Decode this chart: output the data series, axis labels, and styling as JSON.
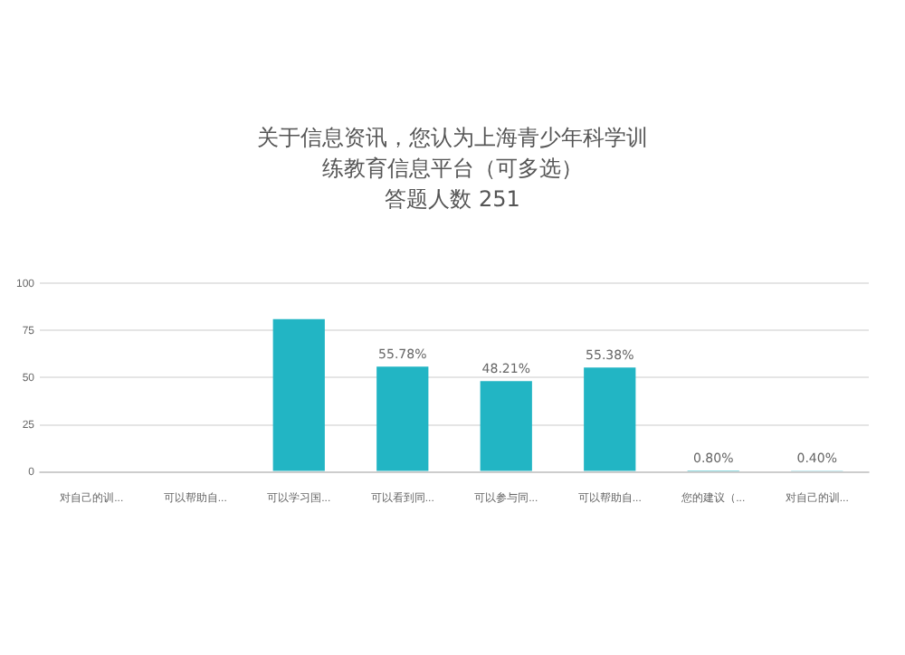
{
  "chart_data": {
    "type": "bar",
    "title": "关于信息资讯，您认为上海青少年科学训练教育信息平台（可多选）",
    "subtitle": "答题人数 251",
    "categories": [
      "对自己的训...",
      "可以帮助自...",
      "可以学习国...",
      "可以看到同...",
      "可以参与同...",
      "可以帮助自...",
      "您的建议（...",
      "对自己的训..."
    ],
    "values": [
      null,
      null,
      81,
      55.78,
      48.21,
      55.38,
      0.8,
      0.4
    ],
    "value_labels": [
      null,
      null,
      null,
      "55.78%",
      "48.21%",
      "55.38%",
      "0.80%",
      "0.40%"
    ],
    "color": "#22b5c4",
    "ylim": [
      0,
      100
    ],
    "yticks": [
      0,
      25,
      50,
      75,
      100
    ],
    "grid": "y"
  }
}
